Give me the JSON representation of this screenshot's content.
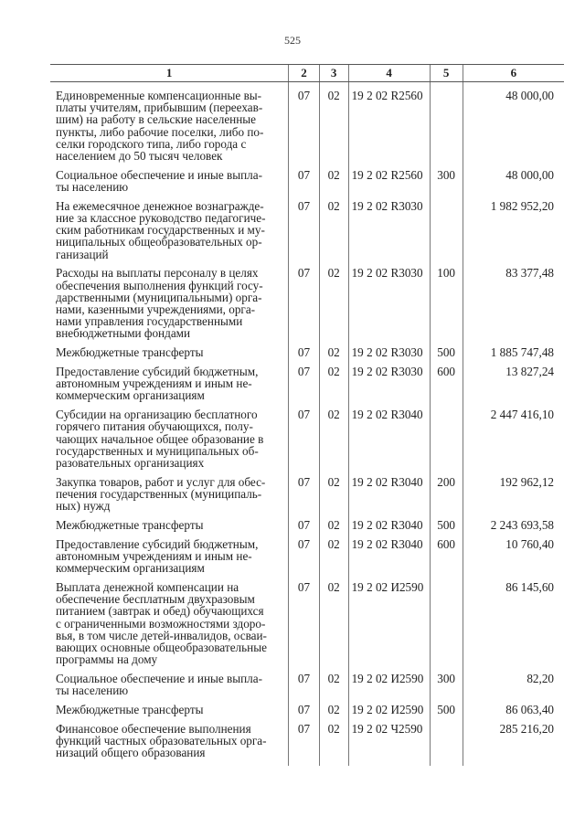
{
  "page_number": "525",
  "table": {
    "headers": [
      "1",
      "2",
      "3",
      "4",
      "5",
      "6"
    ],
    "rows": [
      {
        "name": [
          "Единовременные компенсационные вы-",
          "платы учителям, прибывшим (переехав-",
          "шим) на работу в сельские населенные",
          "пункты, либо рабочие поселки, либо по-",
          "селки городского типа, либо города с",
          "населением до 50 тысяч человек"
        ],
        "rz": "07",
        "pr": "02",
        "csr": "19 2 02 R2560",
        "vr": "",
        "sum": "48 000,00"
      },
      {
        "name": [
          "Социальное обеспечение и иные выпла-",
          "ты населению"
        ],
        "rz": "07",
        "pr": "02",
        "csr": "19 2 02 R2560",
        "vr": "300",
        "sum": "48 000,00"
      },
      {
        "name": [
          "На ежемесячное денежное вознагражде-",
          "ние за классное руководство педагогиче-",
          "ским работникам государственных и му-",
          "ниципальных общеобразовательных ор-",
          "ганизаций"
        ],
        "rz": "07",
        "pr": "02",
        "csr": "19 2 02 R3030",
        "vr": "",
        "sum": "1 982 952,20"
      },
      {
        "name": [
          "Расходы на выплаты персоналу в целях",
          "обеспечения выполнения функций госу-",
          "дарственными (муниципальными) орга-",
          "нами, казенными учреждениями, орга-",
          "нами управления государственными",
          "внебюджетными фондами"
        ],
        "rz": "07",
        "pr": "02",
        "csr": "19 2 02 R3030",
        "vr": "100",
        "sum": "83 377,48"
      },
      {
        "name": [
          "Межбюджетные трансферты"
        ],
        "rz": "07",
        "pr": "02",
        "csr": "19 2 02 R3030",
        "vr": "500",
        "sum": "1 885 747,48"
      },
      {
        "name": [
          "Предоставление субсидий бюджетным,",
          "автономным учреждениям и иным не-",
          "коммерческим организациям"
        ],
        "rz": "07",
        "pr": "02",
        "csr": "19 2 02 R3030",
        "vr": "600",
        "sum": "13 827,24"
      },
      {
        "name": [
          "Субсидии на организацию бесплатного",
          "горячего питания обучающихся, полу-",
          "чающих начальное общее образование в",
          "государственных и муниципальных об-",
          "разовательных организациях"
        ],
        "rz": "07",
        "pr": "02",
        "csr": "19 2 02 R3040",
        "vr": "",
        "sum": "2 447 416,10"
      },
      {
        "name": [
          "Закупка товаров, работ и услуг для обес-",
          "печения государственных (муниципаль-",
          "ных) нужд"
        ],
        "rz": "07",
        "pr": "02",
        "csr": "19 2 02 R3040",
        "vr": "200",
        "sum": "192 962,12"
      },
      {
        "name": [
          "Межбюджетные трансферты"
        ],
        "rz": "07",
        "pr": "02",
        "csr": "19 2 02 R3040",
        "vr": "500",
        "sum": "2 243 693,58"
      },
      {
        "name": [
          "Предоставление субсидий бюджетным,",
          "автономным учреждениям и иным не-",
          "коммерческим организациям"
        ],
        "rz": "07",
        "pr": "02",
        "csr": "19 2 02 R3040",
        "vr": "600",
        "sum": "10 760,40"
      },
      {
        "name": [
          "Выплата денежной компенсации на",
          "обеспечение бесплатным двухразовым",
          "питанием (завтрак и обед) обучающихся",
          "с ограниченными возможностями здоро-",
          "вья, в том числе детей-инвалидов, осваи-",
          "вающих основные общеобразовательные",
          "программы на дому"
        ],
        "rz": "07",
        "pr": "02",
        "csr": "19 2 02 И2590",
        "vr": "",
        "sum": "86 145,60"
      },
      {
        "name": [
          "Социальное обеспечение и иные выпла-",
          "ты населению"
        ],
        "rz": "07",
        "pr": "02",
        "csr": "19 2 02 И2590",
        "vr": "300",
        "sum": "82,20"
      },
      {
        "name": [
          "Межбюджетные трансферты"
        ],
        "rz": "07",
        "pr": "02",
        "csr": "19 2 02 И2590",
        "vr": "500",
        "sum": "86 063,40"
      },
      {
        "name": [
          "Финансовое обеспечение выполнения",
          "функций частных образовательных орга-",
          "низаций общего образования"
        ],
        "rz": "07",
        "pr": "02",
        "csr": "19 2 02 Ч2590",
        "vr": "",
        "sum": "285 216,20"
      }
    ]
  }
}
